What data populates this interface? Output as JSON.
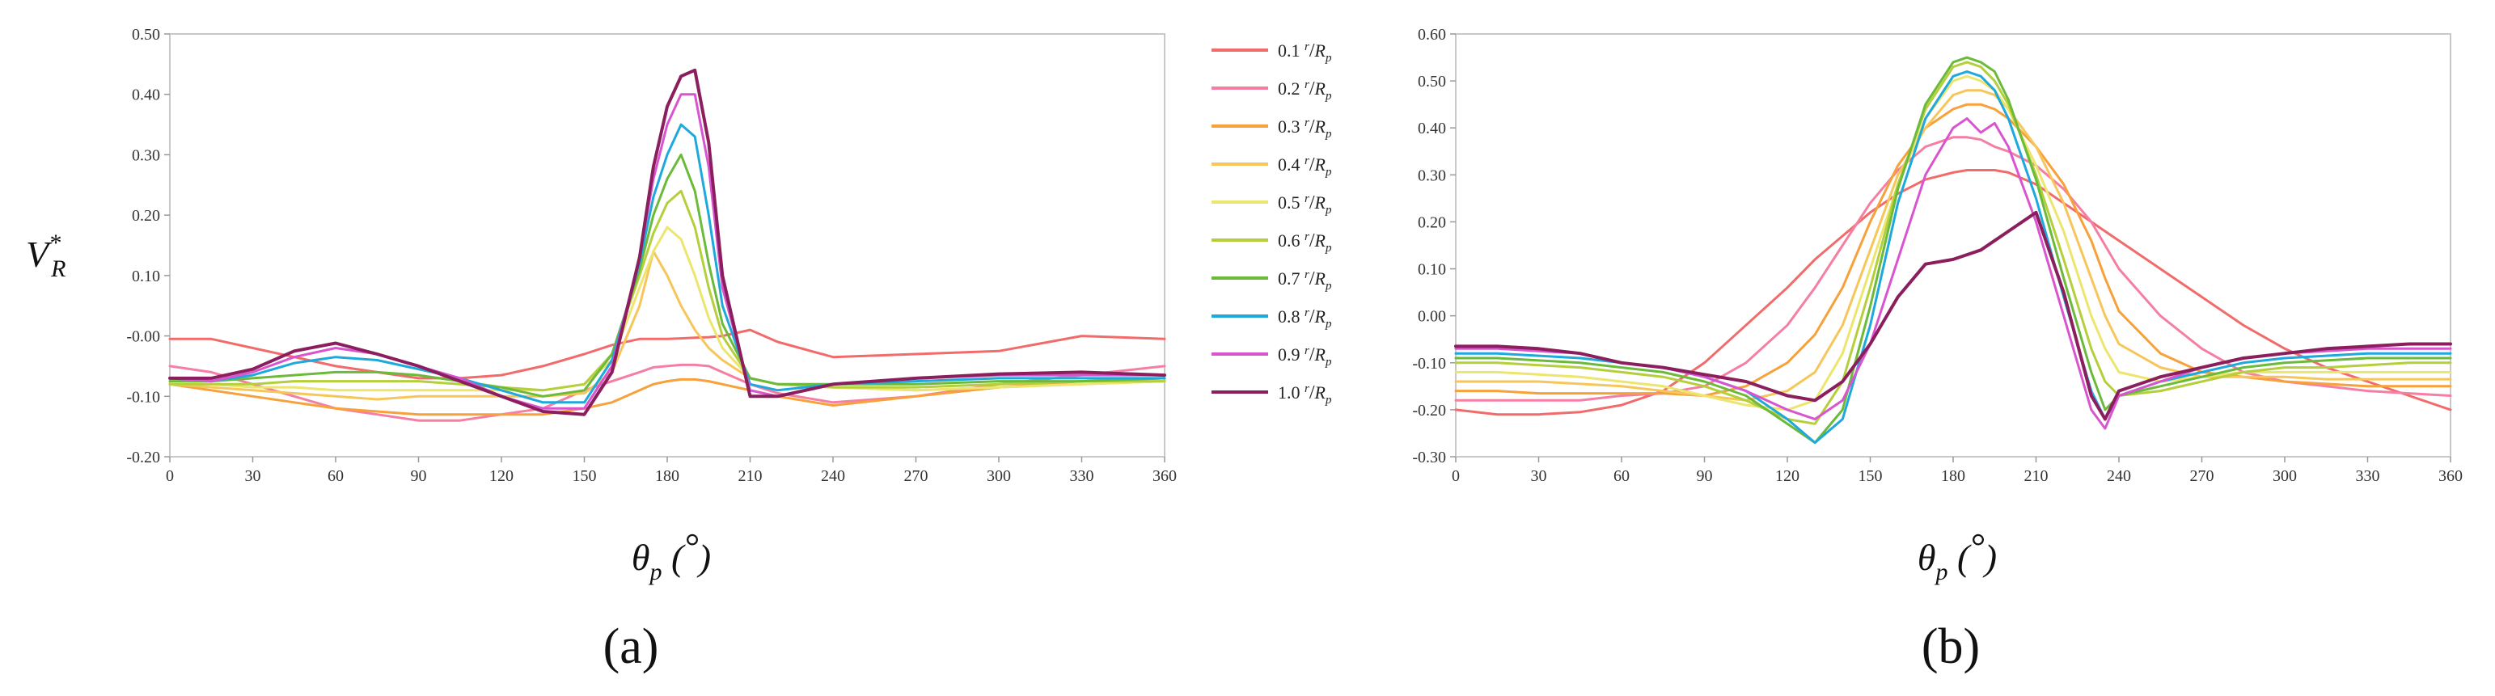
{
  "y_axis_title": {
    "base": "V",
    "sub": "R",
    "sup": "*"
  },
  "x_axis_title": {
    "base": "θ",
    "sub": "p",
    "unit_open": " (",
    "unit": "°",
    "unit_close": ")"
  },
  "legend": {
    "unit_sup": "r",
    "unit_slash": "/",
    "unit_base": "R",
    "unit_sub": "p",
    "items": [
      {
        "label": "0.1",
        "color": "#f26b6b"
      },
      {
        "label": "0.2",
        "color": "#f57fa3"
      },
      {
        "label": "0.3",
        "color": "#f7a13a"
      },
      {
        "label": "0.4",
        "color": "#f7c65a"
      },
      {
        "label": "0.5",
        "color": "#ece56e"
      },
      {
        "label": "0.6",
        "color": "#b5cf3c"
      },
      {
        "label": "0.7",
        "color": "#6cba3a"
      },
      {
        "label": "0.8",
        "color": "#1ea9dd"
      },
      {
        "label": "0.9",
        "color": "#d955cf"
      },
      {
        "label": "1.0",
        "color": "#8b1f5e"
      }
    ]
  },
  "chart_data": [
    {
      "type": "line",
      "panel_label": "(a)",
      "xlim": [
        0,
        360
      ],
      "ylim": [
        -0.2,
        0.5
      ],
      "x_ticks": [
        "0",
        "30",
        "60",
        "90",
        "120",
        "150",
        "180",
        "210",
        "240",
        "270",
        "300",
        "330",
        "360"
      ],
      "y_ticks": [
        "0.50",
        "0.40",
        "0.30",
        "0.20",
        "0.10",
        "-0.00",
        "-0.10",
        "-0.20"
      ],
      "grid": false,
      "x": [
        0,
        15,
        30,
        45,
        60,
        75,
        90,
        105,
        120,
        135,
        150,
        160,
        170,
        175,
        180,
        185,
        190,
        195,
        200,
        210,
        220,
        240,
        270,
        300,
        330,
        360
      ],
      "series": [
        {
          "name": "0.1",
          "values": [
            -0.005,
            -0.005,
            -0.02,
            -0.035,
            -0.05,
            -0.06,
            -0.07,
            -0.07,
            -0.065,
            -0.05,
            -0.03,
            -0.015,
            -0.005,
            -0.005,
            -0.005,
            -0.004,
            -0.003,
            -0.002,
            0.0,
            0.01,
            -0.01,
            -0.035,
            -0.03,
            -0.025,
            0.0,
            -0.005
          ]
        },
        {
          "name": "0.2",
          "values": [
            -0.05,
            -0.06,
            -0.08,
            -0.1,
            -0.12,
            -0.13,
            -0.14,
            -0.14,
            -0.13,
            -0.12,
            -0.09,
            -0.075,
            -0.06,
            -0.052,
            -0.05,
            -0.048,
            -0.048,
            -0.05,
            -0.06,
            -0.08,
            -0.095,
            -0.11,
            -0.1,
            -0.08,
            -0.065,
            -0.05
          ]
        },
        {
          "name": "0.3",
          "values": [
            -0.08,
            -0.09,
            -0.1,
            -0.11,
            -0.12,
            -0.125,
            -0.13,
            -0.13,
            -0.13,
            -0.13,
            -0.12,
            -0.11,
            -0.09,
            -0.08,
            -0.075,
            -0.072,
            -0.072,
            -0.075,
            -0.08,
            -0.09,
            -0.1,
            -0.115,
            -0.1,
            -0.085,
            -0.075,
            -0.07
          ]
        },
        {
          "name": "0.4",
          "values": [
            -0.08,
            -0.085,
            -0.09,
            -0.095,
            -0.1,
            -0.105,
            -0.1,
            -0.1,
            -0.1,
            -0.1,
            -0.095,
            -0.06,
            0.05,
            0.14,
            0.1,
            0.05,
            0.01,
            -0.02,
            -0.04,
            -0.07,
            -0.08,
            -0.085,
            -0.09,
            -0.085,
            -0.08,
            -0.075
          ]
        },
        {
          "name": "0.5",
          "values": [
            -0.08,
            -0.08,
            -0.085,
            -0.085,
            -0.09,
            -0.09,
            -0.09,
            -0.09,
            -0.09,
            -0.09,
            -0.08,
            -0.04,
            0.08,
            0.14,
            0.18,
            0.16,
            0.1,
            0.03,
            -0.02,
            -0.07,
            -0.08,
            -0.085,
            -0.09,
            -0.085,
            -0.08,
            -0.075
          ]
        },
        {
          "name": "0.6",
          "values": [
            -0.08,
            -0.08,
            -0.08,
            -0.075,
            -0.075,
            -0.075,
            -0.075,
            -0.08,
            -0.085,
            -0.09,
            -0.08,
            -0.03,
            0.1,
            0.17,
            0.22,
            0.24,
            0.18,
            0.08,
            0.0,
            -0.07,
            -0.08,
            -0.085,
            -0.085,
            -0.08,
            -0.075,
            -0.075
          ]
        },
        {
          "name": "0.7",
          "values": [
            -0.075,
            -0.075,
            -0.07,
            -0.065,
            -0.06,
            -0.06,
            -0.065,
            -0.075,
            -0.085,
            -0.1,
            -0.09,
            -0.03,
            0.11,
            0.2,
            0.26,
            0.3,
            0.24,
            0.12,
            0.02,
            -0.07,
            -0.08,
            -0.08,
            -0.08,
            -0.075,
            -0.075,
            -0.07
          ]
        },
        {
          "name": "0.8",
          "values": [
            -0.07,
            -0.075,
            -0.065,
            -0.045,
            -0.035,
            -0.04,
            -0.055,
            -0.07,
            -0.09,
            -0.11,
            -0.11,
            -0.04,
            0.12,
            0.23,
            0.3,
            0.35,
            0.33,
            0.2,
            0.05,
            -0.08,
            -0.09,
            -0.08,
            -0.075,
            -0.07,
            -0.07,
            -0.07
          ]
        },
        {
          "name": "0.9",
          "values": [
            -0.07,
            -0.075,
            -0.06,
            -0.035,
            -0.02,
            -0.03,
            -0.05,
            -0.07,
            -0.1,
            -0.12,
            -0.12,
            -0.05,
            0.13,
            0.26,
            0.35,
            0.4,
            0.4,
            0.28,
            0.08,
            -0.09,
            -0.1,
            -0.08,
            -0.07,
            -0.065,
            -0.065,
            -0.065
          ]
        },
        {
          "name": "1.0",
          "values": [
            -0.07,
            -0.07,
            -0.055,
            -0.025,
            -0.012,
            -0.03,
            -0.05,
            -0.075,
            -0.1,
            -0.125,
            -0.13,
            -0.06,
            0.13,
            0.28,
            0.38,
            0.43,
            0.44,
            0.32,
            0.1,
            -0.1,
            -0.1,
            -0.08,
            -0.07,
            -0.063,
            -0.06,
            -0.065
          ]
        }
      ]
    },
    {
      "type": "line",
      "panel_label": "(b)",
      "xlim": [
        0,
        360
      ],
      "ylim": [
        -0.3,
        0.6
      ],
      "x_ticks": [
        "0",
        "30",
        "60",
        "90",
        "120",
        "150",
        "180",
        "210",
        "240",
        "270",
        "300",
        "330",
        "360"
      ],
      "y_ticks": [
        "0.60",
        "0.50",
        "0.40",
        "0.30",
        "0.20",
        "0.10",
        "0.00",
        "-0.10",
        "-0.20",
        "-0.30"
      ],
      "grid": false,
      "x": [
        0,
        15,
        30,
        45,
        60,
        75,
        90,
        105,
        120,
        130,
        140,
        150,
        160,
        170,
        180,
        185,
        190,
        195,
        200,
        210,
        220,
        230,
        235,
        240,
        255,
        270,
        285,
        300,
        315,
        330,
        345,
        360
      ],
      "series": [
        {
          "name": "0.1",
          "values": [
            -0.2,
            -0.21,
            -0.21,
            -0.205,
            -0.19,
            -0.16,
            -0.1,
            -0.02,
            0.06,
            0.12,
            0.17,
            0.22,
            0.26,
            0.29,
            0.305,
            0.31,
            0.31,
            0.31,
            0.305,
            0.28,
            0.24,
            0.2,
            0.18,
            0.16,
            0.1,
            0.04,
            -0.02,
            -0.07,
            -0.11,
            -0.14,
            -0.17,
            -0.2
          ]
        },
        {
          "name": "0.2",
          "values": [
            -0.18,
            -0.18,
            -0.18,
            -0.18,
            -0.17,
            -0.165,
            -0.15,
            -0.1,
            -0.02,
            0.06,
            0.15,
            0.24,
            0.31,
            0.36,
            0.38,
            0.38,
            0.375,
            0.36,
            0.35,
            0.32,
            0.27,
            0.2,
            0.15,
            0.1,
            0.0,
            -0.07,
            -0.12,
            -0.14,
            -0.15,
            -0.16,
            -0.165,
            -0.17
          ]
        },
        {
          "name": "0.3",
          "values": [
            -0.16,
            -0.16,
            -0.165,
            -0.165,
            -0.165,
            -0.165,
            -0.17,
            -0.15,
            -0.1,
            -0.04,
            0.06,
            0.2,
            0.32,
            0.4,
            0.44,
            0.45,
            0.45,
            0.44,
            0.42,
            0.36,
            0.28,
            0.16,
            0.08,
            0.01,
            -0.08,
            -0.12,
            -0.13,
            -0.14,
            -0.145,
            -0.15,
            -0.15,
            -0.15
          ]
        },
        {
          "name": "0.4",
          "values": [
            -0.14,
            -0.14,
            -0.14,
            -0.145,
            -0.15,
            -0.16,
            -0.17,
            -0.18,
            -0.16,
            -0.12,
            -0.02,
            0.14,
            0.3,
            0.4,
            0.47,
            0.48,
            0.48,
            0.47,
            0.44,
            0.36,
            0.24,
            0.08,
            0.0,
            -0.06,
            -0.11,
            -0.13,
            -0.13,
            -0.13,
            -0.135,
            -0.135,
            -0.135,
            -0.135
          ]
        },
        {
          "name": "0.5",
          "values": [
            -0.12,
            -0.12,
            -0.125,
            -0.13,
            -0.14,
            -0.15,
            -0.17,
            -0.19,
            -0.2,
            -0.18,
            -0.08,
            0.1,
            0.28,
            0.42,
            0.5,
            0.51,
            0.5,
            0.48,
            0.44,
            0.32,
            0.18,
            0.0,
            -0.07,
            -0.12,
            -0.14,
            -0.13,
            -0.12,
            -0.12,
            -0.12,
            -0.12,
            -0.12,
            -0.12
          ]
        },
        {
          "name": "0.6",
          "values": [
            -0.1,
            -0.1,
            -0.105,
            -0.11,
            -0.12,
            -0.13,
            -0.15,
            -0.18,
            -0.22,
            -0.23,
            -0.14,
            0.06,
            0.28,
            0.44,
            0.53,
            0.54,
            0.53,
            0.5,
            0.45,
            0.3,
            0.12,
            -0.07,
            -0.14,
            -0.17,
            -0.16,
            -0.14,
            -0.12,
            -0.11,
            -0.11,
            -0.105,
            -0.1,
            -0.1
          ]
        },
        {
          "name": "0.7",
          "values": [
            -0.09,
            -0.09,
            -0.095,
            -0.1,
            -0.11,
            -0.12,
            -0.14,
            -0.17,
            -0.23,
            -0.27,
            -0.2,
            0.02,
            0.27,
            0.45,
            0.54,
            0.55,
            0.54,
            0.52,
            0.46,
            0.29,
            0.08,
            -0.12,
            -0.2,
            -0.17,
            -0.15,
            -0.13,
            -0.11,
            -0.1,
            -0.095,
            -0.09,
            -0.09,
            -0.09
          ]
        },
        {
          "name": "0.8",
          "values": [
            -0.08,
            -0.08,
            -0.085,
            -0.09,
            -0.1,
            -0.11,
            -0.13,
            -0.16,
            -0.22,
            -0.27,
            -0.22,
            -0.02,
            0.24,
            0.42,
            0.51,
            0.52,
            0.51,
            0.48,
            0.42,
            0.25,
            0.04,
            -0.16,
            -0.22,
            -0.17,
            -0.14,
            -0.12,
            -0.1,
            -0.09,
            -0.085,
            -0.08,
            -0.08,
            -0.08
          ]
        },
        {
          "name": "0.9",
          "values": [
            -0.07,
            -0.07,
            -0.075,
            -0.08,
            -0.1,
            -0.11,
            -0.13,
            -0.16,
            -0.2,
            -0.22,
            -0.18,
            -0.06,
            0.12,
            0.3,
            0.4,
            0.42,
            0.39,
            0.41,
            0.36,
            0.2,
            0.0,
            -0.2,
            -0.24,
            -0.17,
            -0.14,
            -0.11,
            -0.09,
            -0.08,
            -0.075,
            -0.07,
            -0.07,
            -0.07
          ]
        },
        {
          "name": "1.0",
          "values": [
            -0.065,
            -0.065,
            -0.07,
            -0.08,
            -0.1,
            -0.11,
            -0.125,
            -0.14,
            -0.17,
            -0.18,
            -0.14,
            -0.06,
            0.04,
            0.11,
            0.12,
            0.13,
            0.14,
            0.16,
            0.18,
            0.22,
            0.05,
            -0.17,
            -0.22,
            -0.16,
            -0.13,
            -0.11,
            -0.09,
            -0.08,
            -0.07,
            -0.065,
            -0.06,
            -0.06
          ]
        }
      ]
    }
  ]
}
